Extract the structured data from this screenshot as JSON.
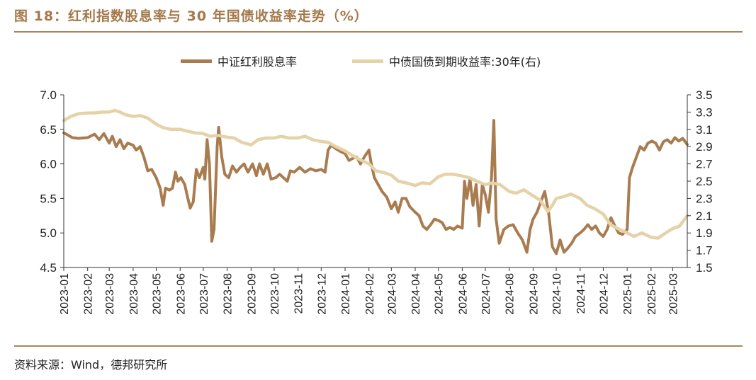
{
  "title": "图 18：红利指数股息率与 30 年国债收益率走势（%）",
  "source": "资料来源：Wind，德邦研究所",
  "chart_data": {
    "type": "line",
    "title": "图 18：红利指数股息率与 30 年国债收益率走势（%）",
    "xlabel": "",
    "ylabel": "",
    "y_left": {
      "lim": [
        4.5,
        7.0
      ],
      "ticks": [
        "4.5",
        "5.0",
        "5.5",
        "6.0",
        "6.5",
        "7.0"
      ]
    },
    "y_right": {
      "lim": [
        1.5,
        3.5
      ],
      "ticks": [
        "1.5",
        "1.7",
        "1.9",
        "2.1",
        "2.3",
        "2.5",
        "2.7",
        "2.9",
        "3.1",
        "3.3",
        "3.5"
      ]
    },
    "x_ticks": [
      "2023-01",
      "2023-02",
      "2023-03",
      "2023-04",
      "2023-05",
      "2023-06",
      "2023-07",
      "2023-08",
      "2023-09",
      "2023-10",
      "2023-11",
      "2023-12",
      "2024-01",
      "2024-02",
      "2024-03",
      "2024-04",
      "2024-05",
      "2024-06",
      "2024-07",
      "2024-08",
      "2024-09",
      "2024-10",
      "2024-11",
      "2024-12",
      "2025-01",
      "2025-02",
      "2025-03"
    ],
    "x_range": [
      "2023-01",
      "2025-03-20"
    ],
    "grid": false,
    "legend_position": "top",
    "series": [
      {
        "name": "中证红利股息率",
        "axis": "left",
        "color": "#a97c50",
        "points": [
          [
            "2023-01-01",
            6.45
          ],
          [
            "2023-01-06",
            6.42
          ],
          [
            "2023-01-12",
            6.38
          ],
          [
            "2023-01-20",
            6.37
          ],
          [
            "2023-02-01",
            6.38
          ],
          [
            "2023-02-10",
            6.43
          ],
          [
            "2023-02-16",
            6.35
          ],
          [
            "2023-02-22",
            6.44
          ],
          [
            "2023-03-01",
            6.3
          ],
          [
            "2023-03-05",
            6.4
          ],
          [
            "2023-03-10",
            6.25
          ],
          [
            "2023-03-15",
            6.35
          ],
          [
            "2023-03-20",
            6.22
          ],
          [
            "2023-03-25",
            6.3
          ],
          [
            "2023-04-01",
            6.27
          ],
          [
            "2023-04-05",
            6.2
          ],
          [
            "2023-04-10",
            6.25
          ],
          [
            "2023-04-15",
            6.1
          ],
          [
            "2023-04-20",
            5.9
          ],
          [
            "2023-04-25",
            5.92
          ],
          [
            "2023-05-01",
            5.8
          ],
          [
            "2023-05-06",
            5.65
          ],
          [
            "2023-05-10",
            5.4
          ],
          [
            "2023-05-13",
            5.65
          ],
          [
            "2023-05-18",
            5.62
          ],
          [
            "2023-05-22",
            5.65
          ],
          [
            "2023-05-26",
            5.88
          ],
          [
            "2023-05-29",
            5.75
          ],
          [
            "2023-06-02",
            5.8
          ],
          [
            "2023-06-07",
            5.7
          ],
          [
            "2023-06-10",
            5.55
          ],
          [
            "2023-06-14",
            5.36
          ],
          [
            "2023-06-18",
            5.45
          ],
          [
            "2023-06-22",
            5.92
          ],
          [
            "2023-06-26",
            5.8
          ],
          [
            "2023-07-01",
            5.95
          ],
          [
            "2023-07-03",
            5.78
          ],
          [
            "2023-07-06",
            6.35
          ],
          [
            "2023-07-09",
            6.0
          ],
          [
            "2023-07-12",
            4.88
          ],
          [
            "2023-07-15",
            5.05
          ],
          [
            "2023-07-19",
            6.25
          ],
          [
            "2023-07-21",
            6.53
          ],
          [
            "2023-07-25",
            6.1
          ],
          [
            "2023-07-29",
            5.85
          ],
          [
            "2023-08-03",
            5.8
          ],
          [
            "2023-08-08",
            5.97
          ],
          [
            "2023-08-13",
            5.88
          ],
          [
            "2023-08-18",
            5.95
          ],
          [
            "2023-08-23",
            6.0
          ],
          [
            "2023-08-28",
            5.88
          ],
          [
            "2023-09-03",
            6.0
          ],
          [
            "2023-09-08",
            5.83
          ],
          [
            "2023-09-12",
            6.0
          ],
          [
            "2023-09-17",
            5.85
          ],
          [
            "2023-09-22",
            6.0
          ],
          [
            "2023-09-27",
            5.78
          ],
          [
            "2023-10-03",
            5.8
          ],
          [
            "2023-10-08",
            5.85
          ],
          [
            "2023-10-13",
            5.8
          ],
          [
            "2023-10-18",
            5.75
          ],
          [
            "2023-10-22",
            5.9
          ],
          [
            "2023-10-27",
            5.88
          ],
          [
            "2023-11-03",
            5.95
          ],
          [
            "2023-11-10",
            5.88
          ],
          [
            "2023-11-17",
            5.93
          ],
          [
            "2023-11-24",
            5.9
          ],
          [
            "2023-12-01",
            5.92
          ],
          [
            "2023-12-06",
            5.88
          ],
          [
            "2023-12-10",
            6.2
          ],
          [
            "2023-12-14",
            6.27
          ],
          [
            "2023-12-20",
            6.22
          ],
          [
            "2023-12-26",
            6.18
          ],
          [
            "2024-01-01",
            6.15
          ],
          [
            "2024-01-06",
            6.05
          ],
          [
            "2024-01-11",
            6.08
          ],
          [
            "2024-01-16",
            6.1
          ],
          [
            "2024-01-21",
            6.0
          ],
          [
            "2024-01-26",
            6.1
          ],
          [
            "2024-02-01",
            6.2
          ],
          [
            "2024-02-04",
            6.0
          ],
          [
            "2024-02-08",
            5.8
          ],
          [
            "2024-02-13",
            5.7
          ],
          [
            "2024-02-18",
            5.6
          ],
          [
            "2024-02-24",
            5.52
          ],
          [
            "2024-03-01",
            5.35
          ],
          [
            "2024-03-06",
            5.45
          ],
          [
            "2024-03-10",
            5.3
          ],
          [
            "2024-03-15",
            5.5
          ],
          [
            "2024-03-20",
            5.5
          ],
          [
            "2024-03-25",
            5.38
          ],
          [
            "2024-04-01",
            5.3
          ],
          [
            "2024-04-06",
            5.25
          ],
          [
            "2024-04-11",
            5.1
          ],
          [
            "2024-04-16",
            5.05
          ],
          [
            "2024-04-21",
            5.12
          ],
          [
            "2024-04-26",
            5.2
          ],
          [
            "2024-05-01",
            5.18
          ],
          [
            "2024-05-06",
            5.15
          ],
          [
            "2024-05-11",
            5.05
          ],
          [
            "2024-05-16",
            5.08
          ],
          [
            "2024-05-21",
            5.05
          ],
          [
            "2024-05-26",
            5.1
          ],
          [
            "2024-06-01",
            5.07
          ],
          [
            "2024-06-04",
            5.75
          ],
          [
            "2024-06-07",
            5.5
          ],
          [
            "2024-06-11",
            5.78
          ],
          [
            "2024-06-15",
            5.4
          ],
          [
            "2024-06-19",
            5.7
          ],
          [
            "2024-06-23",
            5.1
          ],
          [
            "2024-06-27",
            5.7
          ],
          [
            "2024-07-01",
            5.55
          ],
          [
            "2024-07-05",
            5.3
          ],
          [
            "2024-07-09",
            5.8
          ],
          [
            "2024-07-12",
            6.63
          ],
          [
            "2024-07-15",
            5.2
          ],
          [
            "2024-07-19",
            4.85
          ],
          [
            "2024-07-25",
            5.05
          ],
          [
            "2024-07-31",
            5.1
          ],
          [
            "2024-08-06",
            5.12
          ],
          [
            "2024-08-12",
            5.0
          ],
          [
            "2024-08-18",
            4.9
          ],
          [
            "2024-08-24",
            4.72
          ],
          [
            "2024-08-28",
            5.05
          ],
          [
            "2024-09-01",
            5.2
          ],
          [
            "2024-09-06",
            5.3
          ],
          [
            "2024-09-11",
            5.45
          ],
          [
            "2024-09-16",
            5.6
          ],
          [
            "2024-09-21",
            5.3
          ],
          [
            "2024-09-26",
            4.8
          ],
          [
            "2024-10-01",
            4.7
          ],
          [
            "2024-10-06",
            4.9
          ],
          [
            "2024-10-11",
            4.72
          ],
          [
            "2024-10-16",
            4.78
          ],
          [
            "2024-10-21",
            4.85
          ],
          [
            "2024-10-26",
            4.95
          ],
          [
            "2024-11-01",
            5.0
          ],
          [
            "2024-11-06",
            5.05
          ],
          [
            "2024-11-11",
            5.12
          ],
          [
            "2024-11-16",
            5.05
          ],
          [
            "2024-11-21",
            5.1
          ],
          [
            "2024-11-26",
            5.0
          ],
          [
            "2024-12-01",
            4.95
          ],
          [
            "2024-12-06",
            5.05
          ],
          [
            "2024-12-11",
            5.22
          ],
          [
            "2024-12-16",
            5.1
          ],
          [
            "2024-12-21",
            5.0
          ],
          [
            "2024-12-26",
            4.98
          ],
          [
            "2025-01-01",
            5.05
          ],
          [
            "2025-01-04",
            5.8
          ],
          [
            "2025-01-08",
            5.95
          ],
          [
            "2025-01-13",
            6.1
          ],
          [
            "2025-01-18",
            6.25
          ],
          [
            "2025-01-23",
            6.2
          ],
          [
            "2025-01-28",
            6.3
          ],
          [
            "2025-02-02",
            6.33
          ],
          [
            "2025-02-07",
            6.3
          ],
          [
            "2025-02-12",
            6.2
          ],
          [
            "2025-02-17",
            6.32
          ],
          [
            "2025-02-22",
            6.35
          ],
          [
            "2025-02-27",
            6.3
          ],
          [
            "2025-03-04",
            6.38
          ],
          [
            "2025-03-09",
            6.33
          ],
          [
            "2025-03-14",
            6.37
          ],
          [
            "2025-03-20",
            6.28
          ]
        ]
      },
      {
        "name": "中债国债到期收益率:30年(右)",
        "axis": "right",
        "color": "#e6d2a8",
        "points": [
          [
            "2023-01-01",
            3.2
          ],
          [
            "2023-01-10",
            3.25
          ],
          [
            "2023-01-20",
            3.28
          ],
          [
            "2023-02-01",
            3.29
          ],
          [
            "2023-02-10",
            3.29
          ],
          [
            "2023-02-20",
            3.3
          ],
          [
            "2023-03-01",
            3.3
          ],
          [
            "2023-03-08",
            3.32
          ],
          [
            "2023-03-15",
            3.3
          ],
          [
            "2023-03-22",
            3.27
          ],
          [
            "2023-04-01",
            3.25
          ],
          [
            "2023-04-10",
            3.26
          ],
          [
            "2023-04-20",
            3.23
          ],
          [
            "2023-05-01",
            3.16
          ],
          [
            "2023-05-10",
            3.12
          ],
          [
            "2023-05-20",
            3.1
          ],
          [
            "2023-06-01",
            3.1
          ],
          [
            "2023-06-10",
            3.08
          ],
          [
            "2023-06-20",
            3.06
          ],
          [
            "2023-07-01",
            3.05
          ],
          [
            "2023-07-10",
            3.02
          ],
          [
            "2023-07-20",
            3.03
          ],
          [
            "2023-08-01",
            3.01
          ],
          [
            "2023-08-10",
            3.0
          ],
          [
            "2023-08-20",
            2.95
          ],
          [
            "2023-09-01",
            2.92
          ],
          [
            "2023-09-10",
            2.98
          ],
          [
            "2023-09-20",
            3.0
          ],
          [
            "2023-10-01",
            3.0
          ],
          [
            "2023-10-10",
            3.02
          ],
          [
            "2023-10-20",
            3.0
          ],
          [
            "2023-11-01",
            3.0
          ],
          [
            "2023-11-10",
            3.02
          ],
          [
            "2023-11-20",
            2.98
          ],
          [
            "2023-12-01",
            2.96
          ],
          [
            "2023-12-10",
            2.95
          ],
          [
            "2023-12-20",
            2.9
          ],
          [
            "2024-01-01",
            2.85
          ],
          [
            "2024-01-10",
            2.8
          ],
          [
            "2024-01-20",
            2.75
          ],
          [
            "2024-02-01",
            2.7
          ],
          [
            "2024-02-10",
            2.62
          ],
          [
            "2024-02-20",
            2.6
          ],
          [
            "2024-03-01",
            2.57
          ],
          [
            "2024-03-10",
            2.5
          ],
          [
            "2024-03-20",
            2.48
          ],
          [
            "2024-04-01",
            2.45
          ],
          [
            "2024-04-10",
            2.48
          ],
          [
            "2024-04-20",
            2.47
          ],
          [
            "2024-05-01",
            2.55
          ],
          [
            "2024-05-10",
            2.58
          ],
          [
            "2024-05-20",
            2.58
          ],
          [
            "2024-06-01",
            2.56
          ],
          [
            "2024-06-10",
            2.54
          ],
          [
            "2024-06-20",
            2.5
          ],
          [
            "2024-07-01",
            2.46
          ],
          [
            "2024-07-10",
            2.48
          ],
          [
            "2024-07-20",
            2.46
          ],
          [
            "2024-08-01",
            2.38
          ],
          [
            "2024-08-10",
            2.36
          ],
          [
            "2024-08-20",
            2.4
          ],
          [
            "2024-09-01",
            2.33
          ],
          [
            "2024-09-10",
            2.28
          ],
          [
            "2024-09-20",
            2.15
          ],
          [
            "2024-09-26",
            2.22
          ],
          [
            "2024-10-01",
            2.3
          ],
          [
            "2024-10-10",
            2.32
          ],
          [
            "2024-10-20",
            2.35
          ],
          [
            "2024-11-01",
            2.3
          ],
          [
            "2024-11-10",
            2.22
          ],
          [
            "2024-11-20",
            2.18
          ],
          [
            "2024-12-01",
            2.12
          ],
          [
            "2024-12-10",
            2.0
          ],
          [
            "2024-12-20",
            1.95
          ],
          [
            "2025-01-01",
            1.9
          ],
          [
            "2025-01-10",
            1.86
          ],
          [
            "2025-01-20",
            1.9
          ],
          [
            "2025-02-01",
            1.85
          ],
          [
            "2025-02-10",
            1.84
          ],
          [
            "2025-02-20",
            1.9
          ],
          [
            "2025-03-01",
            1.95
          ],
          [
            "2025-03-10",
            1.98
          ],
          [
            "2025-03-20",
            2.1
          ]
        ]
      }
    ]
  }
}
